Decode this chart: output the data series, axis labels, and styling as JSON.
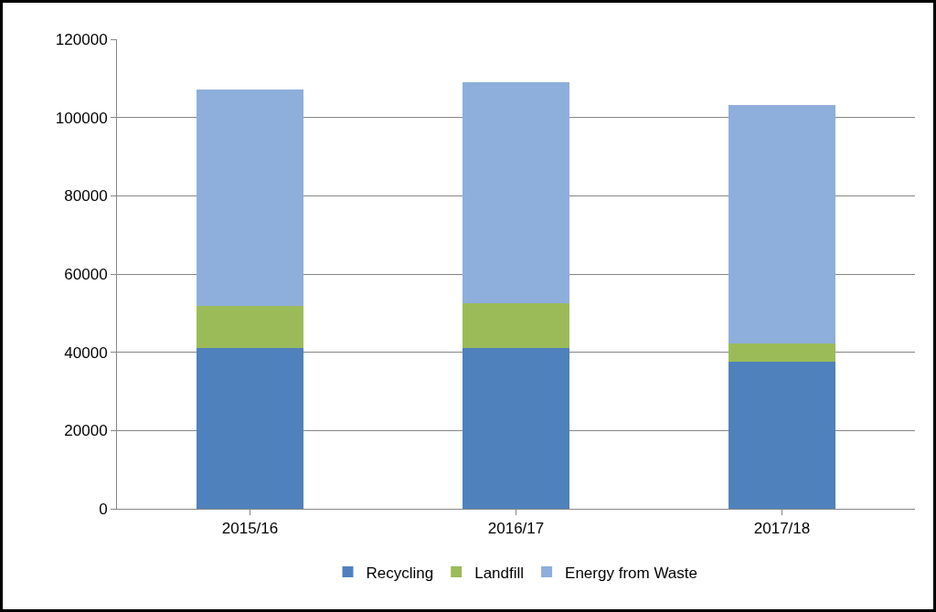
{
  "chart_data": {
    "type": "bar",
    "stacked": true,
    "categories": [
      "2015/16",
      "2016/17",
      "2017/18"
    ],
    "series": [
      {
        "name": "Recycling",
        "color": "#4f81bd",
        "values": [
          41000,
          41000,
          37500
        ]
      },
      {
        "name": "Landfill",
        "color": "#9bbb59",
        "values": [
          10800,
          11500,
          4700
        ]
      },
      {
        "name": "Energy from Waste",
        "color": "#8eaedb",
        "values": [
          55400,
          56600,
          61100
        ]
      }
    ],
    "ylim": [
      0,
      120000
    ],
    "yticks": [
      0,
      20000,
      40000,
      60000,
      80000,
      100000,
      120000
    ],
    "grid": "y",
    "legend": "bottom"
  }
}
